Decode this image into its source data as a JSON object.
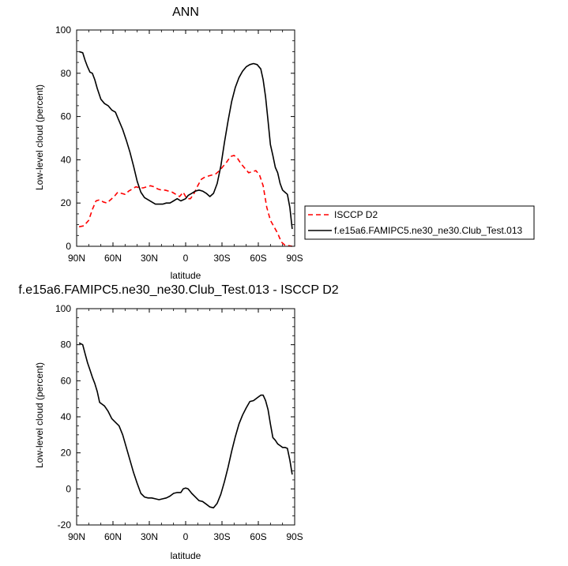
{
  "chart_data": [
    {
      "type": "line",
      "title": "ANN",
      "xlabel": "latitude",
      "ylabel": "Low-level cloud (percent)",
      "xlim": [
        90,
        -90
      ],
      "ylim": [
        0,
        100
      ],
      "xticks": [
        90,
        60,
        30,
        0,
        -30,
        -60,
        -90
      ],
      "xtick_labels": [
        "90N",
        "60N",
        "30N",
        "0",
        "30S",
        "60S",
        "90S"
      ],
      "yticks": [
        0,
        20,
        40,
        60,
        80,
        100
      ],
      "ytick_labels": [
        "0",
        "20",
        "40",
        "60",
        "80",
        "100"
      ],
      "legend_position": "right",
      "series": [
        {
          "name": "ISCCP D2",
          "color": "#ff0000",
          "dash": "dashed",
          "x": [
            88,
            84,
            80,
            77,
            74,
            71,
            68,
            65,
            62,
            59,
            56,
            53,
            50,
            47,
            44,
            41,
            38,
            35,
            32,
            29,
            26,
            23,
            20,
            17,
            14,
            11,
            8,
            5,
            2,
            -1,
            -4,
            -7,
            -10,
            -13,
            -16,
            -19,
            -22,
            -25,
            -28,
            -31,
            -34,
            -37,
            -40,
            -43,
            -46,
            -49,
            -52,
            -55,
            -58,
            -61,
            -64,
            -67,
            -70,
            -73,
            -76,
            -79,
            -82,
            -85,
            -88
          ],
          "y": [
            9,
            9.5,
            12,
            17,
            21,
            21.5,
            20.5,
            20,
            21.5,
            23,
            25,
            24.5,
            24,
            25.5,
            26.5,
            27.5,
            27,
            27,
            27.5,
            28,
            27.5,
            26.5,
            26,
            26,
            25.5,
            25,
            24,
            23,
            25,
            22,
            22,
            24.5,
            28,
            31,
            32,
            32.5,
            33,
            33.5,
            35,
            37,
            39,
            41.5,
            42,
            40.5,
            38,
            36,
            34,
            34.5,
            35,
            33,
            28,
            18,
            12,
            9,
            6,
            2,
            0.5,
            0.3,
            0
          ]
        },
        {
          "name": "f.e15a6.FAMIPC5.ne30_ne30.Club_Test.013",
          "color": "#000000",
          "dash": "solid",
          "x": [
            88,
            85,
            83,
            81,
            79,
            77,
            75,
            73,
            70,
            67,
            64,
            61,
            58,
            55,
            52,
            49,
            46,
            43,
            40,
            37,
            34,
            31,
            28,
            25,
            22,
            19,
            16,
            13,
            10,
            7,
            4,
            2,
            0,
            -2,
            -5,
            -8,
            -11,
            -14,
            -17,
            -20,
            -23,
            -26,
            -29,
            -32,
            -35,
            -38,
            -41,
            -44,
            -47,
            -50,
            -53,
            -56,
            -59,
            -62,
            -64,
            -66,
            -68,
            -70,
            -72,
            -74,
            -76,
            -78,
            -80,
            -82,
            -84,
            -86,
            -88
          ],
          "y": [
            90,
            89.5,
            86,
            83,
            80.5,
            80,
            77,
            73,
            68,
            66,
            65,
            63,
            62,
            58,
            54,
            49,
            43.5,
            37,
            30,
            25,
            22.5,
            21.5,
            20.5,
            19.5,
            19.5,
            19.5,
            20,
            20,
            21,
            22,
            21,
            21.5,
            22,
            23.5,
            24.5,
            25.5,
            26,
            25.5,
            24.5,
            23,
            24.5,
            29,
            37,
            48,
            58,
            67,
            73.5,
            78,
            81,
            83,
            84,
            84.5,
            84,
            82,
            77,
            69,
            58,
            47,
            42,
            36.5,
            34,
            29,
            26,
            25,
            24,
            18,
            8
          ]
        }
      ]
    },
    {
      "type": "line",
      "title": "f.e15a6.FAMIPC5.ne30_ne30.Club_Test.013 - ISCCP D2",
      "xlabel": "latitude",
      "ylabel": "Low-level cloud (percent)",
      "xlim": [
        90,
        -90
      ],
      "ylim": [
        -20,
        100
      ],
      "xticks": [
        90,
        60,
        30,
        0,
        -30,
        -60,
        -90
      ],
      "xtick_labels": [
        "90N",
        "60N",
        "30N",
        "0",
        "30S",
        "60S",
        "90S"
      ],
      "yticks": [
        -20,
        0,
        20,
        40,
        60,
        80,
        100
      ],
      "ytick_labels": [
        "-20",
        "0",
        "20",
        "40",
        "60",
        "80",
        "100"
      ],
      "series": [
        {
          "color": "#000000",
          "dash": "solid",
          "x": [
            88,
            85,
            83,
            81,
            79,
            77,
            75,
            73,
            71,
            69,
            67,
            64,
            61,
            58,
            55,
            52,
            49,
            46,
            43,
            40,
            37,
            34,
            31,
            28,
            25,
            22,
            19,
            16,
            13,
            10,
            7,
            4,
            2,
            0,
            -2,
            -5,
            -8,
            -11,
            -14,
            -17,
            -20,
            -23,
            -26,
            -29,
            -32,
            -35,
            -38,
            -41,
            -44,
            -47,
            -50,
            -53,
            -56,
            -59,
            -62,
            -64,
            -66,
            -68,
            -70,
            -72,
            -74,
            -76,
            -78,
            -80,
            -82,
            -84,
            -86,
            -88
          ],
          "y": [
            81,
            80,
            75,
            70,
            66,
            62,
            58.5,
            54,
            48,
            47,
            46,
            43,
            39,
            37,
            35,
            30,
            23,
            16,
            9,
            3,
            -2.5,
            -4.5,
            -5,
            -5,
            -5.5,
            -6,
            -5.5,
            -5,
            -4,
            -2.5,
            -2,
            -2,
            0,
            0.5,
            0,
            -2.5,
            -4.5,
            -6.5,
            -7,
            -8.5,
            -10,
            -10.5,
            -8,
            -3,
            4,
            12,
            21,
            29,
            36,
            41,
            45,
            48.5,
            49,
            50.5,
            52,
            52,
            49,
            44,
            36,
            28.5,
            27,
            25,
            24,
            23,
            23,
            22.5,
            16,
            8
          ]
        }
      ]
    }
  ]
}
